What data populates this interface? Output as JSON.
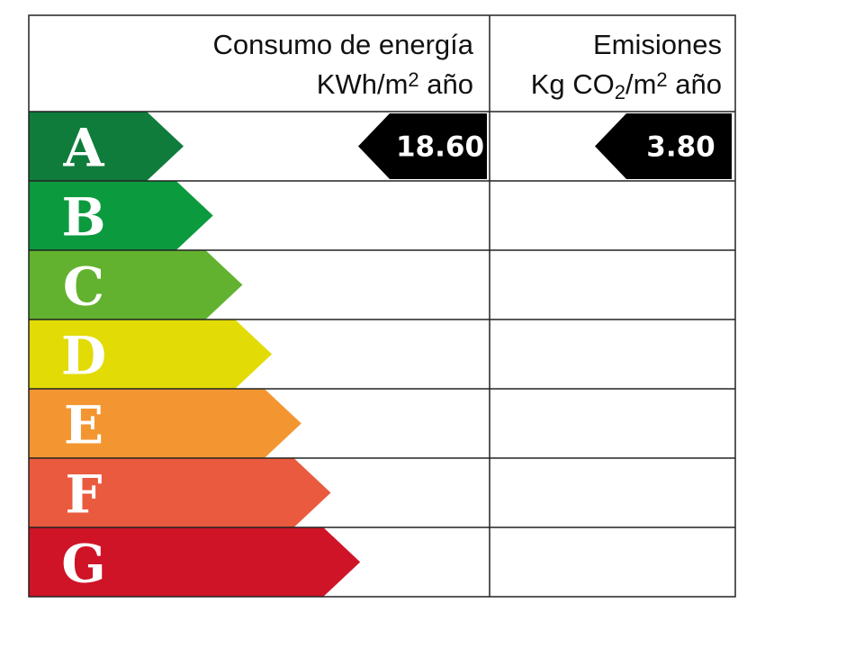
{
  "header": {
    "energy_title": "Consumo de energía",
    "energy_unit_pre": "KWh/m",
    "energy_unit_sup": "2",
    "energy_unit_post": " año",
    "emissions_title": "Emisiones",
    "emissions_unit_pre": "Kg CO",
    "emissions_unit_sub": "2",
    "emissions_unit_mid": "/m",
    "emissions_unit_sup": "2",
    "emissions_unit_post": " año"
  },
  "chart_data": {
    "type": "table",
    "categories": [
      "A",
      "B",
      "C",
      "D",
      "E",
      "F",
      "G"
    ],
    "colors": [
      "#0f7c3c",
      "#0c9a3e",
      "#62b22f",
      "#e2db06",
      "#f39631",
      "#ea5a3e",
      "#cf1427"
    ],
    "energy_consumption": {
      "rating": "A",
      "value": "18.60"
    },
    "emissions": {
      "rating": "A",
      "value": "3.80"
    }
  }
}
